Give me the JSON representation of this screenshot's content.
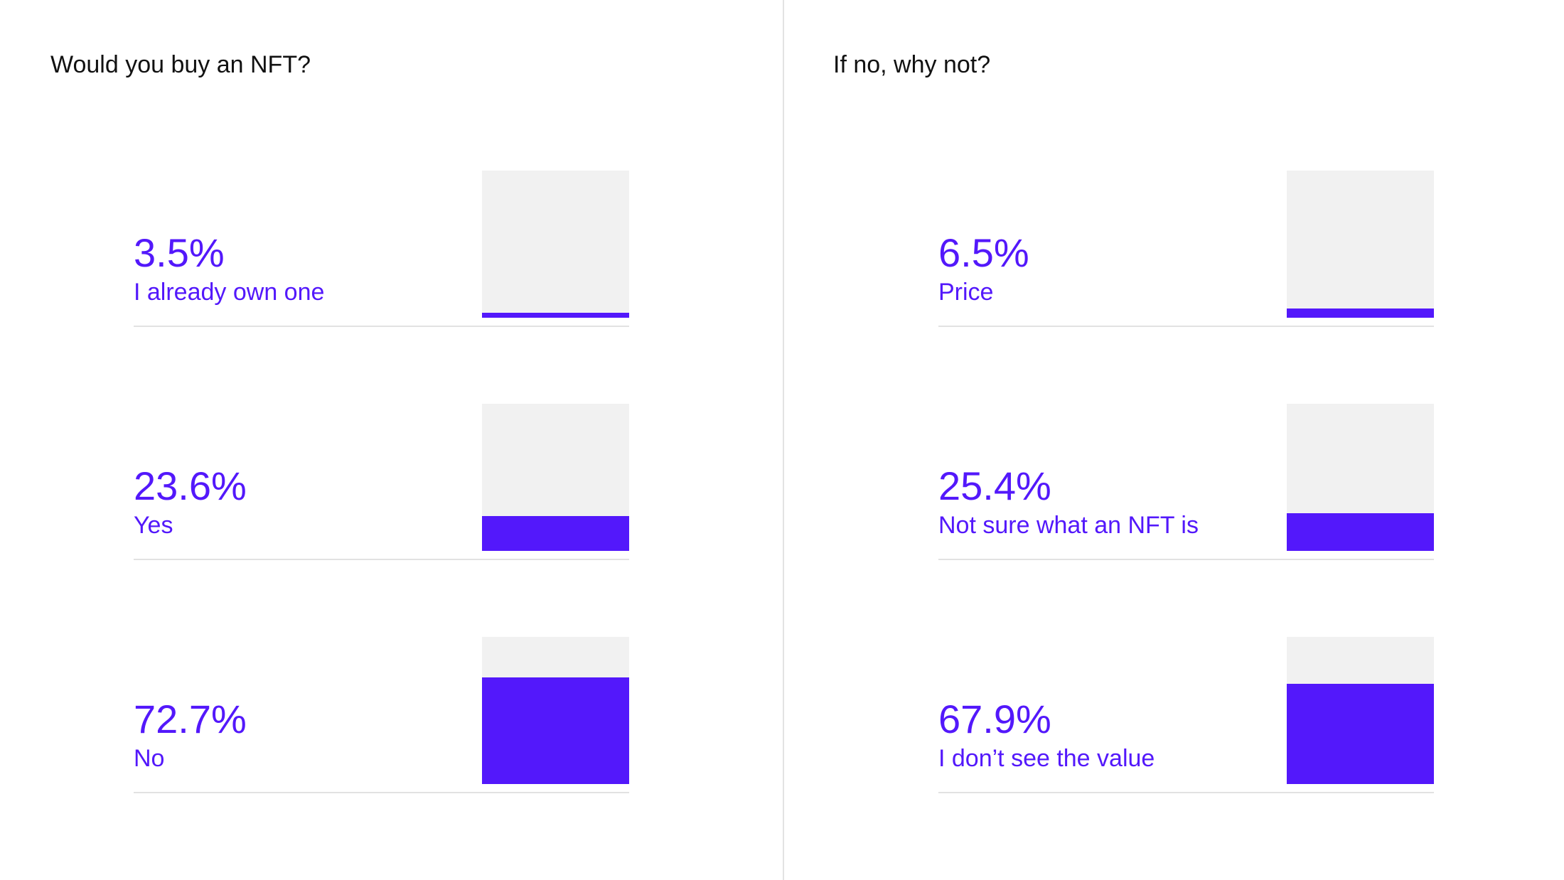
{
  "colors": {
    "accent": "#5318fb",
    "track": "#f1f1f1",
    "rule": "#e2e2e2",
    "title": "#111111"
  },
  "chart_data": [
    {
      "type": "bar",
      "title": "Would you buy an NFT?",
      "categories": [
        "I already own one",
        "Yes",
        "No"
      ],
      "values": [
        3.5,
        23.6,
        72.7
      ],
      "value_labels": [
        "3.5%",
        "23.6%",
        "72.7%"
      ],
      "unit": "%",
      "ylim": [
        0,
        100
      ]
    },
    {
      "type": "bar",
      "title": "If no, why not?",
      "categories": [
        "Price",
        "Not sure what an NFT is",
        "I don’t see the value"
      ],
      "values": [
        6.5,
        25.4,
        67.9
      ],
      "value_labels": [
        "6.5%",
        "25.4%",
        "67.9%"
      ],
      "unit": "%",
      "ylim": [
        0,
        100
      ]
    }
  ]
}
